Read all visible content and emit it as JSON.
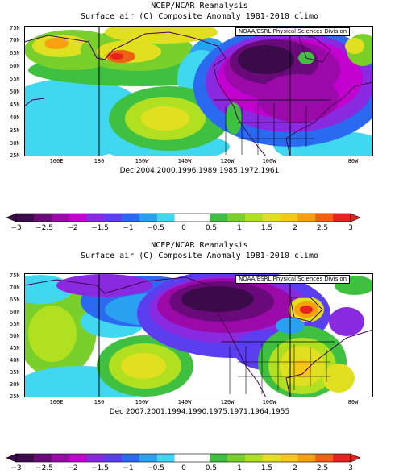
{
  "panels": [
    {
      "title_line1": "NCEP/NCAR Reanalysis",
      "title_line2": "Surface air (C) Composite Anomaly 1981-2010 climo",
      "credit": "NOAA/ESRL Physical Sciences Division",
      "dates": "Dec 2004,2000,1996,1989,1985,1972,1961",
      "lat_labels": [
        "75N",
        "70N",
        "65N",
        "60N",
        "55N",
        "50N",
        "45N",
        "40N",
        "35N",
        "30N",
        "25N"
      ],
      "lon_labels": [
        "160E",
        "180",
        "160W",
        "140W",
        "120W",
        "100W",
        "80W"
      ]
    },
    {
      "title_line1": "NCEP/NCAR Reanalysis",
      "title_line2": "Surface air (C) Composite Anomaly 1981-2010 climo",
      "credit": "NOAA/ESRL Physical Sciences Division",
      "dates": "Dec 2007,2001,1994,1990,1975,1971,1964,1955",
      "lat_labels": [
        "75N",
        "70N",
        "65N",
        "60N",
        "55N",
        "50N",
        "45N",
        "40N",
        "35N",
        "30N",
        "25N"
      ],
      "lon_labels": [
        "160E",
        "180",
        "160W",
        "140W",
        "120W",
        "100W",
        "80W"
      ]
    }
  ],
  "colorbar": {
    "labels": [
      "−3",
      "−2.5",
      "−2",
      "−1.5",
      "−1",
      "−0.5",
      "0",
      "0.5",
      "1",
      "1.5",
      "2",
      "2.5",
      "3"
    ],
    "colors": [
      "#3a0a4a",
      "#6a0a7a",
      "#9b0aa8",
      "#c200d0",
      "#8a2ae0",
      "#5a3ef0",
      "#2a6af0",
      "#2aa0f0",
      "#40d8f0",
      "#ffffff",
      "#ffffff",
      "#40c040",
      "#7ad02a",
      "#b0e020",
      "#e0e020",
      "#f8c818",
      "#f8a010",
      "#f06010",
      "#e82020"
    ]
  }
}
